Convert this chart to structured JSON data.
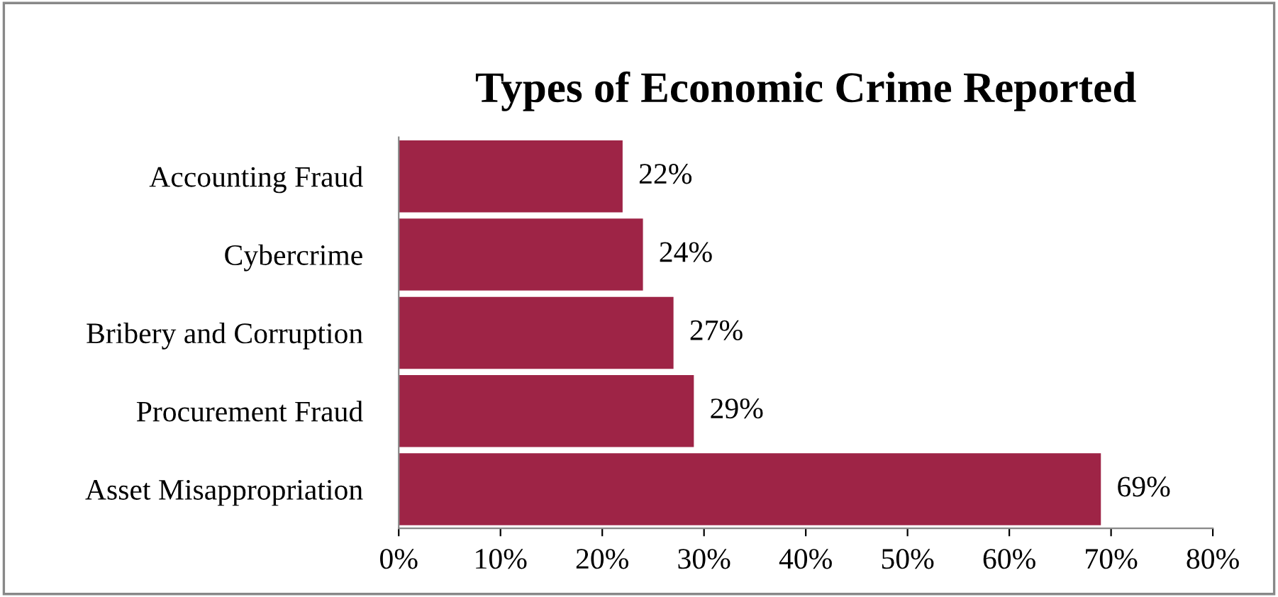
{
  "chart_data": {
    "type": "bar",
    "orientation": "horizontal",
    "title": "Types of Economic Crime Reported",
    "categories": [
      "Accounting Fraud",
      "Cybercrime",
      "Bribery and Corruption",
      "Procurement Fraud",
      "Asset Misappropriation"
    ],
    "values": [
      22,
      24,
      27,
      29,
      69
    ],
    "value_labels": [
      "22%",
      "24%",
      "27%",
      "29%",
      "69%"
    ],
    "color": "#9e2446",
    "xlim": [
      0,
      80
    ],
    "xticks": [
      {
        "value": 0,
        "label": "0%"
      },
      {
        "value": 10,
        "label": "10%"
      },
      {
        "value": 20,
        "label": "20%"
      },
      {
        "value": 30,
        "label": "30%"
      },
      {
        "value": 40,
        "label": "40%"
      },
      {
        "value": 50,
        "label": "50%"
      },
      {
        "value": 60,
        "label": "60%"
      },
      {
        "value": 70,
        "label": "70%"
      },
      {
        "value": 80,
        "label": "80%"
      }
    ],
    "grid": false,
    "legend": false
  }
}
